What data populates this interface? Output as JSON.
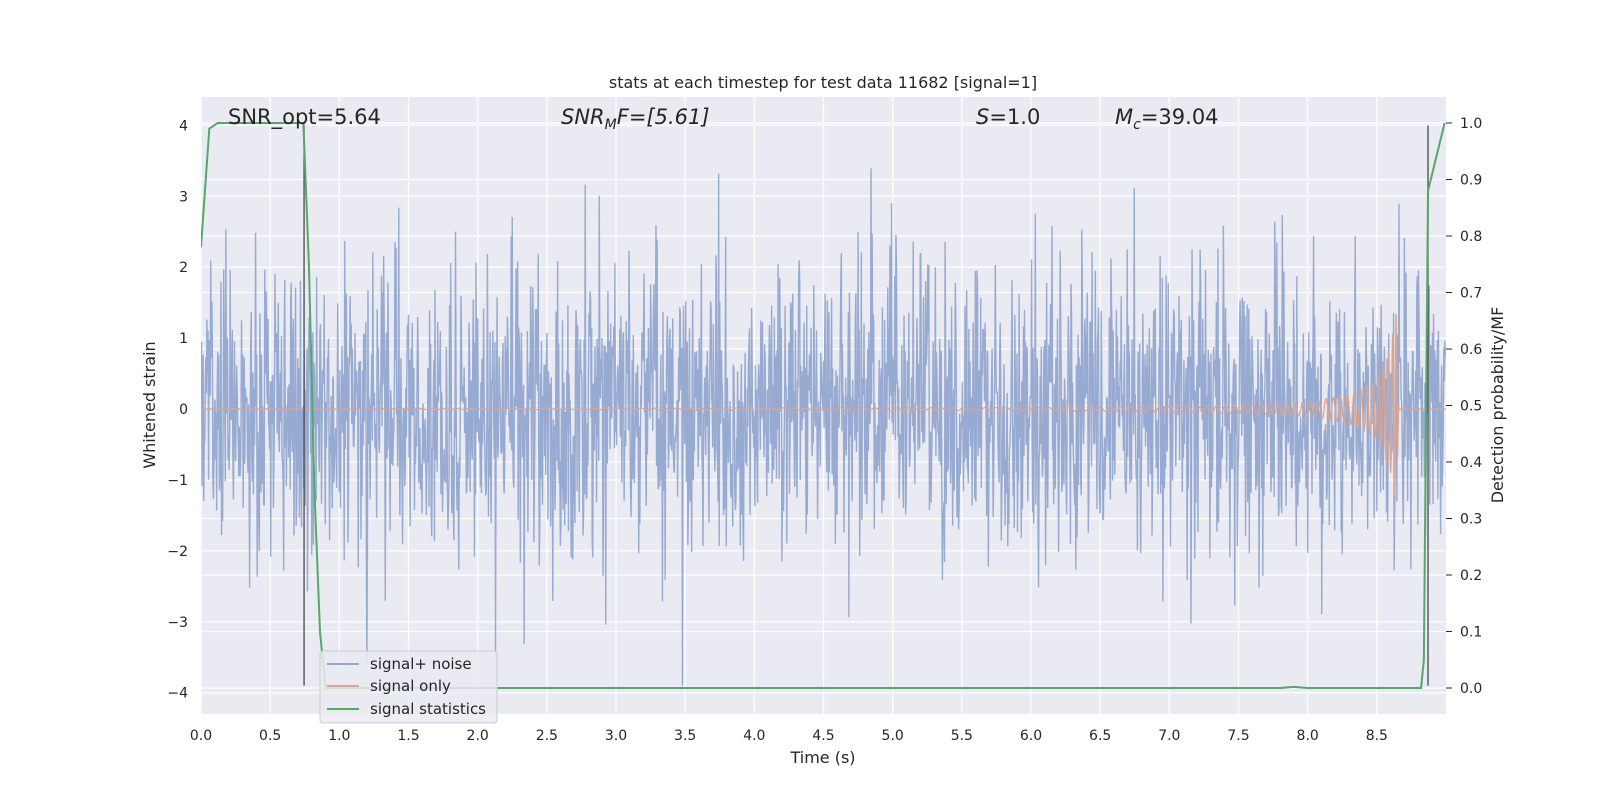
{
  "chart_data": {
    "type": "line",
    "title": "stats at each timestep for test data 11682 [signal=1]",
    "xlabel": "Time (s)",
    "ylabel": "Whitened strain",
    "y2label": "Detection probability/MF",
    "xlim": [
      0.0,
      9.0
    ],
    "ylim": [
      -4.3,
      4.4
    ],
    "y2lim": [
      -0.046,
      1.046
    ],
    "x_ticks": [
      "0.0",
      "0.5",
      "1.0",
      "1.5",
      "2.0",
      "2.5",
      "3.0",
      "3.5",
      "4.0",
      "4.5",
      "5.0",
      "5.5",
      "6.0",
      "6.5",
      "7.0",
      "7.5",
      "8.0",
      "8.5"
    ],
    "y_ticks": [
      "−4",
      "−3",
      "−2",
      "−1",
      "0",
      "1",
      "2",
      "3",
      "4"
    ],
    "y2_ticks": [
      "0.0",
      "0.1",
      "0.2",
      "0.3",
      "0.4",
      "0.5",
      "0.6",
      "0.7",
      "0.8",
      "0.9",
      "1.0"
    ],
    "grid": true,
    "legend_position": "lower-left",
    "annotations": {
      "snr_opt": "SNR_opt=5.64",
      "snr_mf_base": "SNR",
      "snr_mf_sub": "M",
      "snr_mf_rest": "F=[5.61]",
      "s_base": "S",
      "s_rest": "=1.0",
      "mc_base": "M",
      "mc_sub": "c",
      "mc_rest": "=39.04"
    },
    "series": [
      {
        "name": "signal+ noise",
        "color": "#92a7cf",
        "description_values": {
          "sample_rate_hz": 256,
          "approx_std": 1.0,
          "approx_min": -3.9,
          "approx_max": 3.7
        }
      },
      {
        "name": "signal only",
        "color": "#e0a48a",
        "x": [
          0.0,
          6.0,
          7.0,
          7.5,
          8.0,
          8.3,
          8.5,
          8.6,
          8.64,
          8.66
        ],
        "amplitude": [
          0.0,
          0.02,
          0.04,
          0.06,
          0.1,
          0.2,
          0.4,
          0.9,
          1.4,
          0.0
        ]
      },
      {
        "name": "signal statistics",
        "color": "#55a868",
        "axis": "right",
        "x": [
          0.0,
          0.06,
          0.12,
          0.5,
          0.7,
          0.74,
          0.78,
          0.82,
          0.86,
          0.9,
          1.0,
          7.8,
          7.9,
          8.0,
          8.5,
          8.82,
          8.84,
          8.87,
          8.9,
          8.93,
          8.96,
          8.99
        ],
        "values": [
          0.78,
          0.99,
          1.0,
          1.0,
          1.0,
          1.0,
          0.75,
          0.35,
          0.1,
          0.0,
          0.0,
          0.0,
          0.002,
          0.0,
          0.0,
          0.0,
          0.05,
          0.88,
          0.91,
          0.94,
          0.97,
          1.0
        ]
      }
    ],
    "vertical_markers": [
      {
        "x": 0.745,
        "y_from": -3.9,
        "y_to": 4.0
      },
      {
        "x": 8.87,
        "y_from": -3.9,
        "y_to": 4.0
      }
    ]
  },
  "legend": {
    "items": [
      {
        "label": "signal+ noise",
        "color": "#92a7cf"
      },
      {
        "label": "signal only",
        "color": "#e0a48a"
      },
      {
        "label": "signal statistics",
        "color": "#55a868"
      }
    ]
  }
}
